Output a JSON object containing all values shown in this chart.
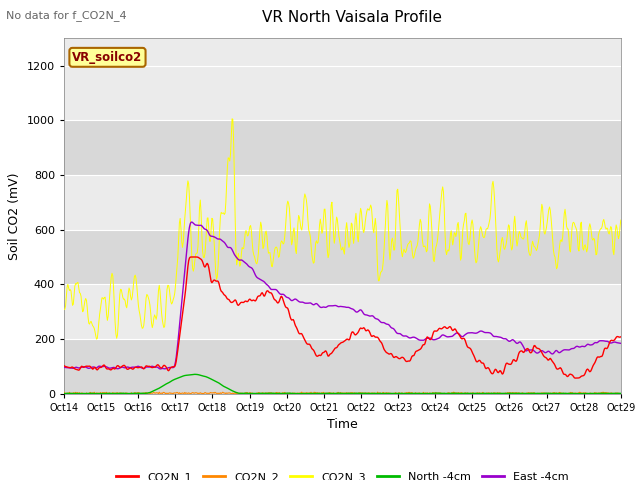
{
  "title": "VR North Vaisala Profile",
  "subtitle": "No data for f_CO2N_4",
  "xlabel": "Time",
  "ylabel": "Soil CO2 (mV)",
  "box_label": "VR_soilco2",
  "ylim": [
    0,
    1300
  ],
  "yticks": [
    0,
    200,
    400,
    600,
    800,
    1000,
    1200
  ],
  "xtick_labels": [
    "Oct 14",
    "Oct 15",
    "Oct 16",
    "Oct 17",
    "Oct 18",
    "Oct 19",
    "Oct 20",
    "Oct 21",
    "Oct 22",
    "Oct 23",
    "Oct 24",
    "Oct 25",
    "Oct 26",
    "Oct 27",
    "Oct 28",
    "Oct 29"
  ],
  "n_days": 15,
  "colors": {
    "CO2N_1": "#ff0000",
    "CO2N_2": "#ff8800",
    "CO2N_3_legend": "#cccc00",
    "North_4cm": "#00bb00",
    "East_4cm": "#9900cc",
    "yellow_line": "#ffff00",
    "background": "#ffffff",
    "plot_bg_light": "#ebebeb",
    "plot_bg_dark": "#d8d8d8"
  },
  "legend_labels": [
    "CO2N_1",
    "CO2N_2",
    "CO2N_3",
    "North -4cm",
    "East -4cm"
  ],
  "legend_colors": [
    "#ff0000",
    "#ff8800",
    "#ffff00",
    "#00bb00",
    "#9900cc"
  ]
}
